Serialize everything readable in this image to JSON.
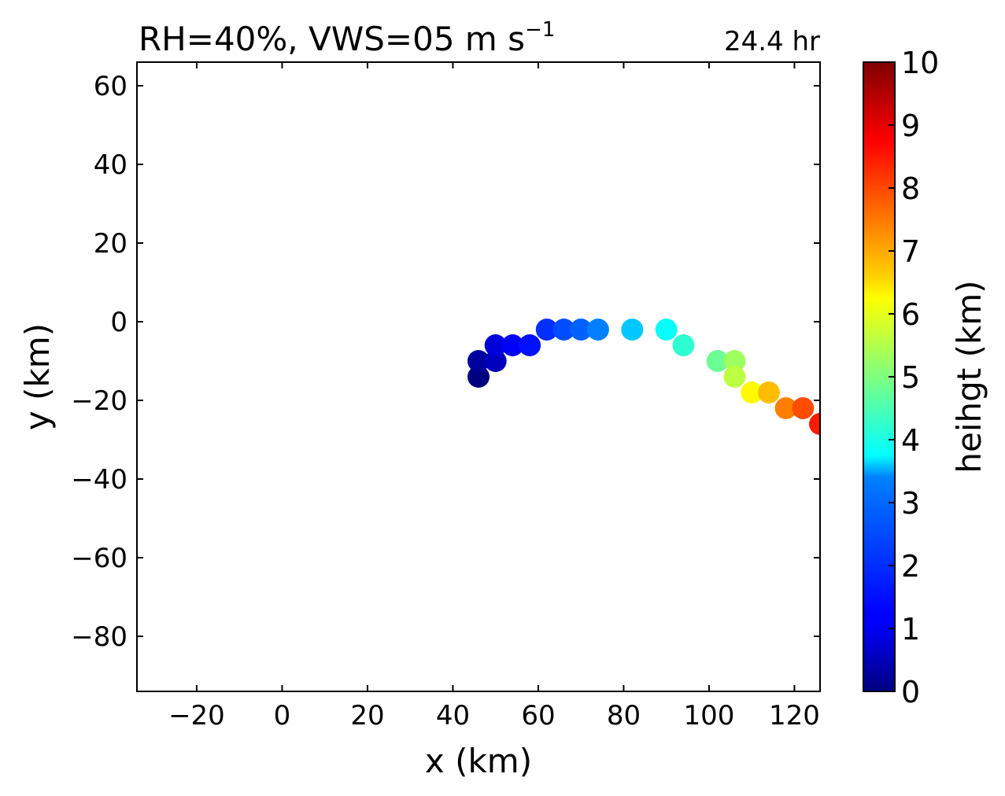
{
  "chart_data": {
    "type": "scatter",
    "title": "RH=40%, VWS=05 m s",
    "title_superscript": "−1",
    "time_label": "24.4 hr",
    "time_label_color": "#0000ff",
    "xlabel": "x (km)",
    "ylabel": "y (km)",
    "xlim": [
      -34,
      126
    ],
    "ylim": [
      -94,
      66
    ],
    "xticks": [
      -20,
      0,
      20,
      40,
      60,
      80,
      100,
      120
    ],
    "yticks": [
      -80,
      -60,
      -40,
      -20,
      0,
      20,
      40,
      60
    ],
    "xtick_labels": [
      "−20",
      "0",
      "20",
      "40",
      "60",
      "80",
      "100",
      "120"
    ],
    "ytick_labels": [
      "−80",
      "−60",
      "−40",
      "−20",
      "0",
      "20",
      "40",
      "60"
    ],
    "grid": false,
    "colormap": "jet",
    "colorbar": {
      "label": "heihgt (km)",
      "range": [
        0,
        10
      ],
      "ticks": [
        0,
        1,
        2,
        3,
        4,
        5,
        6,
        7,
        8,
        9,
        10
      ],
      "tick_labels": [
        "0",
        "1",
        "2",
        "3",
        "4",
        "5",
        "6",
        "7",
        "8",
        "9",
        "10"
      ]
    },
    "points": [
      {
        "x": 46,
        "y": -14,
        "height": 0.0
      },
      {
        "x": 46,
        "y": -10,
        "height": 0.3
      },
      {
        "x": 50,
        "y": -10,
        "height": 0.6
      },
      {
        "x": 50,
        "y": -6,
        "height": 0.9
      },
      {
        "x": 54,
        "y": -6,
        "height": 1.2
      },
      {
        "x": 58,
        "y": -6,
        "height": 1.4
      },
      {
        "x": 62,
        "y": -2,
        "height": 1.7
      },
      {
        "x": 66,
        "y": -2,
        "height": 2.0
      },
      {
        "x": 70,
        "y": -2,
        "height": 2.2
      },
      {
        "x": 74,
        "y": -2,
        "height": 2.5
      },
      {
        "x": 82,
        "y": -2,
        "height": 3.2
      },
      {
        "x": 90,
        "y": -2,
        "height": 3.8
      },
      {
        "x": 94,
        "y": -6,
        "height": 4.2
      },
      {
        "x": 102,
        "y": -10,
        "height": 4.8
      },
      {
        "x": 106,
        "y": -10,
        "height": 5.3
      },
      {
        "x": 106,
        "y": -14,
        "height": 5.6
      },
      {
        "x": 110,
        "y": -18,
        "height": 6.3
      },
      {
        "x": 114,
        "y": -18,
        "height": 6.9
      },
      {
        "x": 118,
        "y": -22,
        "height": 7.5
      },
      {
        "x": 122,
        "y": -22,
        "height": 8.0
      },
      {
        "x": 126,
        "y": -26,
        "height": 8.5
      }
    ]
  }
}
